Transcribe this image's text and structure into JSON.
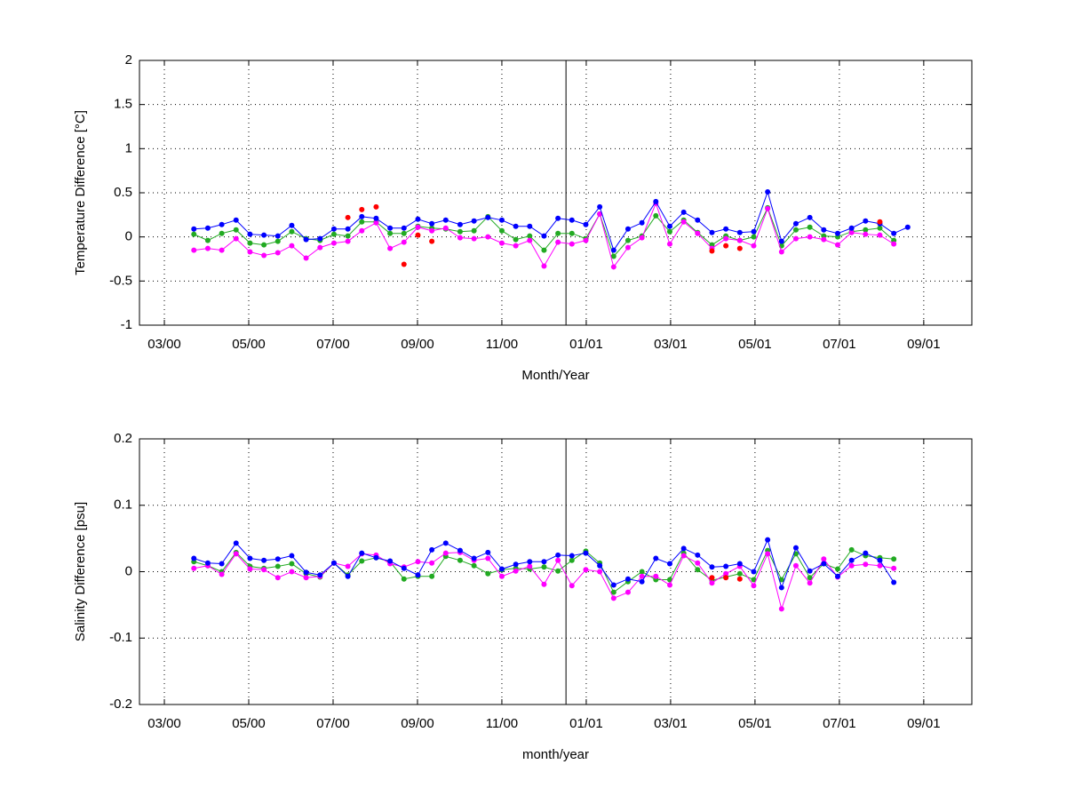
{
  "chart_data": [
    {
      "type": "line",
      "ylabel": "Temperature Difference [°C]",
      "xlabel": "Month/Year",
      "xlim": [
        1.41,
        21.14
      ],
      "ylim": [
        -1,
        2
      ],
      "xticks": [
        {
          "value": 2,
          "label": "03/00"
        },
        {
          "value": 4,
          "label": "05/00"
        },
        {
          "value": 6,
          "label": "07/00"
        },
        {
          "value": 8,
          "label": "09/00"
        },
        {
          "value": 10,
          "label": "11/00"
        },
        {
          "value": 12,
          "label": "01/01"
        },
        {
          "value": 14,
          "label": "03/01"
        },
        {
          "value": 16,
          "label": "05/01"
        },
        {
          "value": 18,
          "label": "07/01"
        },
        {
          "value": 20,
          "label": "09/01"
        }
      ],
      "yticks": [
        -1,
        -0.5,
        0,
        0.5,
        1,
        1.5,
        2
      ],
      "grid": true,
      "vline": 11.52,
      "x": [
        2.7,
        3.03,
        3.36,
        3.7,
        4.03,
        4.36,
        4.69,
        5.02,
        5.36,
        5.69,
        6.02,
        6.35,
        6.68,
        7.02,
        7.35,
        7.68,
        8.01,
        8.34,
        8.67,
        9.01,
        9.34,
        9.67,
        10.0,
        10.33,
        10.66,
        11.0,
        11.33,
        11.66,
        11.99,
        12.32,
        12.65,
        12.99,
        13.32,
        13.65,
        13.98,
        14.31,
        14.64,
        14.98,
        15.31,
        15.64,
        15.97,
        16.3,
        16.63,
        16.97,
        17.3,
        17.63,
        17.96,
        18.29,
        18.62,
        18.96,
        19.29,
        19.62
      ],
      "series": [
        {
          "color": "#22aa22",
          "line": true,
          "values": [
            0.03,
            -0.04,
            0.04,
            0.08,
            -0.07,
            -0.09,
            -0.05,
            0.06,
            -0.02,
            -0.04,
            0.03,
            0.01,
            0.17,
            0.17,
            0.04,
            0.04,
            0.12,
            0.1,
            0.09,
            0.06,
            0.07,
            0.23,
            0.07,
            -0.03,
            0.01,
            -0.15,
            0.04,
            0.04,
            -0.02,
            0.26,
            -0.22,
            -0.04,
            0.01,
            0.24,
            0.06,
            0.19,
            0.05,
            -0.09,
            0.01,
            -0.04,
            0.0,
            0.33,
            -0.1,
            0.08,
            0.11,
            0.01,
            0.0,
            0.06,
            0.08,
            0.1,
            -0.04,
            null
          ]
        },
        {
          "color": "#ff00ff",
          "line": true,
          "values": [
            -0.15,
            -0.13,
            -0.15,
            -0.02,
            -0.17,
            -0.21,
            -0.18,
            -0.1,
            -0.24,
            -0.12,
            -0.07,
            -0.05,
            0.07,
            0.16,
            -0.13,
            -0.06,
            0.11,
            0.07,
            0.1,
            -0.01,
            -0.02,
            0.0,
            -0.07,
            -0.1,
            -0.04,
            -0.33,
            -0.06,
            -0.08,
            -0.04,
            0.26,
            -0.34,
            -0.12,
            -0.01,
            0.38,
            -0.08,
            0.17,
            0.04,
            -0.13,
            -0.02,
            -0.04,
            -0.1,
            0.32,
            -0.17,
            -0.02,
            0.0,
            -0.03,
            -0.09,
            0.05,
            0.03,
            0.02,
            -0.08,
            null
          ]
        },
        {
          "color": "#0000ff",
          "line": true,
          "values": [
            0.09,
            0.1,
            0.14,
            0.19,
            0.03,
            0.02,
            0.01,
            0.13,
            -0.03,
            -0.02,
            0.09,
            0.09,
            0.23,
            0.21,
            0.1,
            0.1,
            0.2,
            0.15,
            0.19,
            0.14,
            0.18,
            0.22,
            0.19,
            0.12,
            0.12,
            0.01,
            0.21,
            0.19,
            0.14,
            0.34,
            -0.15,
            0.09,
            0.16,
            0.4,
            0.12,
            0.28,
            0.19,
            0.05,
            0.09,
            0.05,
            0.06,
            0.51,
            -0.05,
            0.15,
            0.22,
            0.08,
            0.04,
            0.1,
            0.18,
            0.15,
            0.04,
            0.11
          ]
        },
        {
          "color": "#ff0000",
          "line": false,
          "values": [
            null,
            null,
            null,
            null,
            null,
            null,
            null,
            null,
            null,
            null,
            null,
            0.22,
            0.31,
            0.34,
            null,
            -0.31,
            0.02,
            -0.05,
            null,
            null,
            null,
            null,
            null,
            null,
            null,
            null,
            null,
            null,
            null,
            null,
            null,
            null,
            null,
            null,
            null,
            null,
            null,
            -0.16,
            -0.1,
            -0.13,
            null,
            null,
            null,
            null,
            null,
            null,
            null,
            null,
            null,
            0.17,
            null,
            null
          ]
        }
      ]
    },
    {
      "type": "line",
      "ylabel": "Salinity Difference [psu]",
      "xlabel": "month/year",
      "xlim": [
        1.41,
        21.14
      ],
      "ylim": [
        -0.2,
        0.2
      ],
      "xticks": [
        {
          "value": 2,
          "label": "03/00"
        },
        {
          "value": 4,
          "label": "05/00"
        },
        {
          "value": 6,
          "label": "07/00"
        },
        {
          "value": 8,
          "label": "09/00"
        },
        {
          "value": 10,
          "label": "11/00"
        },
        {
          "value": 12,
          "label": "01/01"
        },
        {
          "value": 14,
          "label": "03/01"
        },
        {
          "value": 16,
          "label": "05/01"
        },
        {
          "value": 18,
          "label": "07/01"
        },
        {
          "value": 20,
          "label": "09/01"
        }
      ],
      "yticks": [
        -0.2,
        -0.1,
        0,
        0.1,
        0.2
      ],
      "grid": true,
      "vline": 11.52,
      "x": [
        2.7,
        3.03,
        3.36,
        3.7,
        4.03,
        4.36,
        4.69,
        5.02,
        5.36,
        5.69,
        6.02,
        6.35,
        6.68,
        7.02,
        7.35,
        7.68,
        8.01,
        8.34,
        8.67,
        9.01,
        9.34,
        9.67,
        10.0,
        10.33,
        10.66,
        11.0,
        11.33,
        11.66,
        11.99,
        12.32,
        12.65,
        12.99,
        13.32,
        13.65,
        13.98,
        14.31,
        14.64,
        14.98,
        15.31,
        15.64,
        15.97,
        16.3,
        16.63,
        16.97,
        17.3,
        17.63,
        17.96,
        18.29,
        18.62,
        18.96,
        19.29,
        19.62
      ],
      "series": [
        {
          "color": "#22aa22",
          "line": true,
          "values": [
            0.015,
            0.009,
            0,
            0.029,
            0.008,
            0.005,
            0.008,
            0.012,
            -0.003,
            -0.008,
            0.013,
            -0.005,
            0.016,
            0.021,
            0.015,
            -0.011,
            -0.007,
            -0.007,
            0.023,
            0.017,
            0.009,
            -0.003,
            0.003,
            0.005,
            0.004,
            0.007,
            0.001,
            0.017,
            0.031,
            0.013,
            -0.031,
            -0.015,
            0,
            -0.012,
            -0.012,
            0.028,
            0.003,
            -0.013,
            -0.008,
            -0.003,
            -0.012,
            0.032,
            -0.012,
            0.027,
            -0.009,
            0.012,
            0.004,
            0.033,
            0.024,
            0.021,
            0.019,
            null
          ]
        },
        {
          "color": "#ff00ff",
          "line": true,
          "values": [
            0.005,
            0.009,
            -0.004,
            0.027,
            0.004,
            0.003,
            -0.009,
            0,
            -0.009,
            -0.007,
            0.013,
            0.008,
            0.027,
            0.025,
            0.012,
            0.007,
            0.015,
            0.013,
            0.028,
            0.029,
            0.017,
            0.02,
            -0.007,
            0.001,
            0.008,
            -0.019,
            0.017,
            -0.021,
            0.003,
            0,
            -0.04,
            -0.031,
            -0.007,
            -0.007,
            -0.02,
            0.024,
            0.013,
            -0.017,
            -0.003,
            0.008,
            -0.021,
            0.027,
            -0.056,
            0.009,
            -0.017,
            0.019,
            -0.008,
            0.009,
            0.011,
            0.009,
            0.005,
            null
          ]
        },
        {
          "color": "#0000ff",
          "line": true,
          "values": [
            0.02,
            0.013,
            0.012,
            0.043,
            0.02,
            0.017,
            0.019,
            0.024,
            -0.001,
            -0.005,
            0.013,
            -0.007,
            0.028,
            0.021,
            0.016,
            0.005,
            -0.005,
            0.033,
            0.043,
            0.032,
            0.02,
            0.029,
            0.004,
            0.011,
            0.015,
            0.015,
            0.025,
            0.024,
            0.028,
            0.009,
            -0.02,
            -0.011,
            -0.015,
            0.02,
            0.012,
            0.035,
            0.025,
            0.007,
            0.008,
            0.012,
            0.0,
            0.048,
            -0.024,
            0.036,
            0.001,
            0.012,
            -0.007,
            0.017,
            0.028,
            0.017,
            -0.016,
            null
          ]
        },
        {
          "color": "#ff0000",
          "line": false,
          "values": [
            null,
            null,
            null,
            null,
            null,
            null,
            null,
            null,
            null,
            null,
            null,
            null,
            null,
            null,
            null,
            null,
            null,
            null,
            null,
            null,
            null,
            null,
            null,
            null,
            null,
            null,
            null,
            null,
            null,
            null,
            null,
            null,
            null,
            null,
            null,
            null,
            null,
            -0.009,
            -0.009,
            -0.011,
            null,
            null,
            null,
            null,
            null,
            null,
            null,
            null,
            null,
            null,
            null,
            null
          ]
        }
      ]
    }
  ]
}
